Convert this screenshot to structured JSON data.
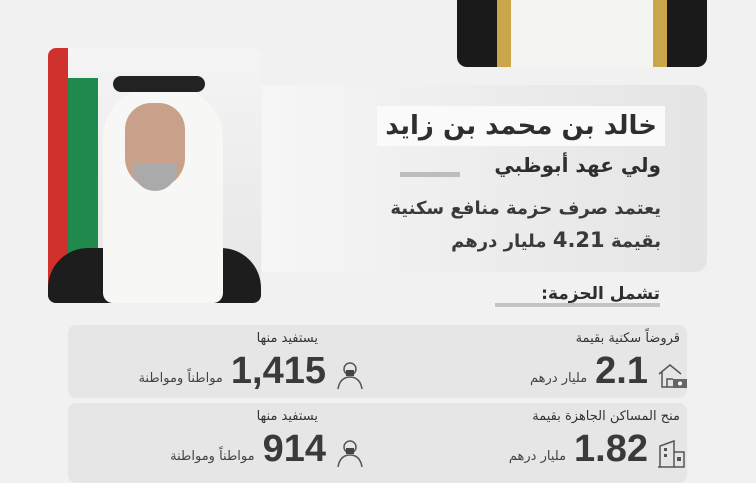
{
  "header": {
    "name": "خالد بن محمد بن زايد",
    "role": "ولي عهد أبوظبي",
    "description_line1": "يعتمد صرف حزمة منافع سكنية",
    "description_line2_prefix": "بقيمة",
    "description_amount": "4.21",
    "description_line2_suffix": "مليار درهم"
  },
  "package": {
    "title": "تشمل الحزمة:",
    "rows": [
      {
        "label": "قروضاً سكنية بقيمة",
        "value": "2.1",
        "unit": "مليار درهم",
        "icon": "house-money-icon",
        "beneficiaries_label": "يستفيد منها",
        "beneficiaries": "1,415",
        "beneficiaries_unit": "مواطناً ومواطنة",
        "beneficiary_icon": "emirati-person-icon"
      },
      {
        "label": "منح المساكن الجاهزة بقيمة",
        "value": "1.82",
        "unit": "مليار درهم",
        "icon": "buildings-icon",
        "beneficiaries_label": "يستفيد منها",
        "beneficiaries": "914",
        "beneficiaries_unit": "مواطناً ومواطنة",
        "beneficiary_icon": "emirati-person-icon"
      }
    ]
  },
  "colors": {
    "flag_red": "#d0312d",
    "flag_green": "#1f8a4c",
    "text": "#2e2e2e"
  }
}
